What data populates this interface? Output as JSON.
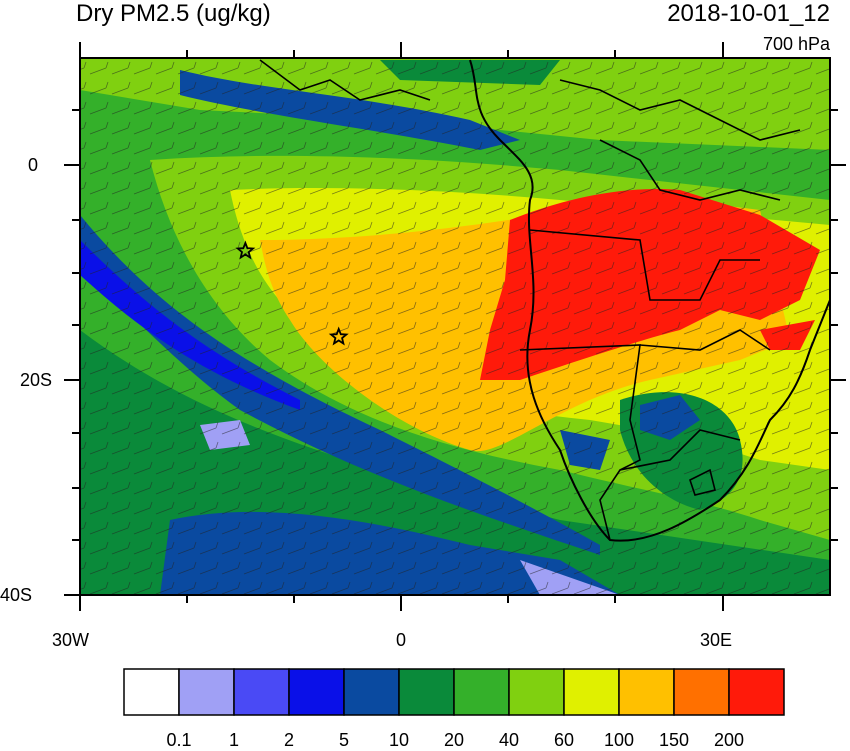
{
  "title": "Dry PM2.5 (ug/kg)",
  "datetime": "2018-10-01_12",
  "level": "700 hPa",
  "lat_labels": [
    "0",
    "20S",
    "40S"
  ],
  "lon_labels": [
    "30W",
    "0",
    "30E"
  ],
  "colorbar": {
    "colors": [
      "#ffffff",
      "#a0a0f5",
      "#4a4af5",
      "#0a10e8",
      "#0a4aa0",
      "#0a8a3a",
      "#34b02a",
      "#80d010",
      "#e0f000",
      "#ffc000",
      "#ff7000",
      "#ff1a0a"
    ],
    "labels": [
      "0.1",
      "1",
      "2",
      "5",
      "10",
      "20",
      "40",
      "60",
      "100",
      "150",
      "200"
    ]
  },
  "markers": [
    {
      "name": "star-west",
      "lon": -14.5,
      "lat": -8
    },
    {
      "name": "star-east",
      "lon": -5.8,
      "lat": -16
    }
  ]
}
